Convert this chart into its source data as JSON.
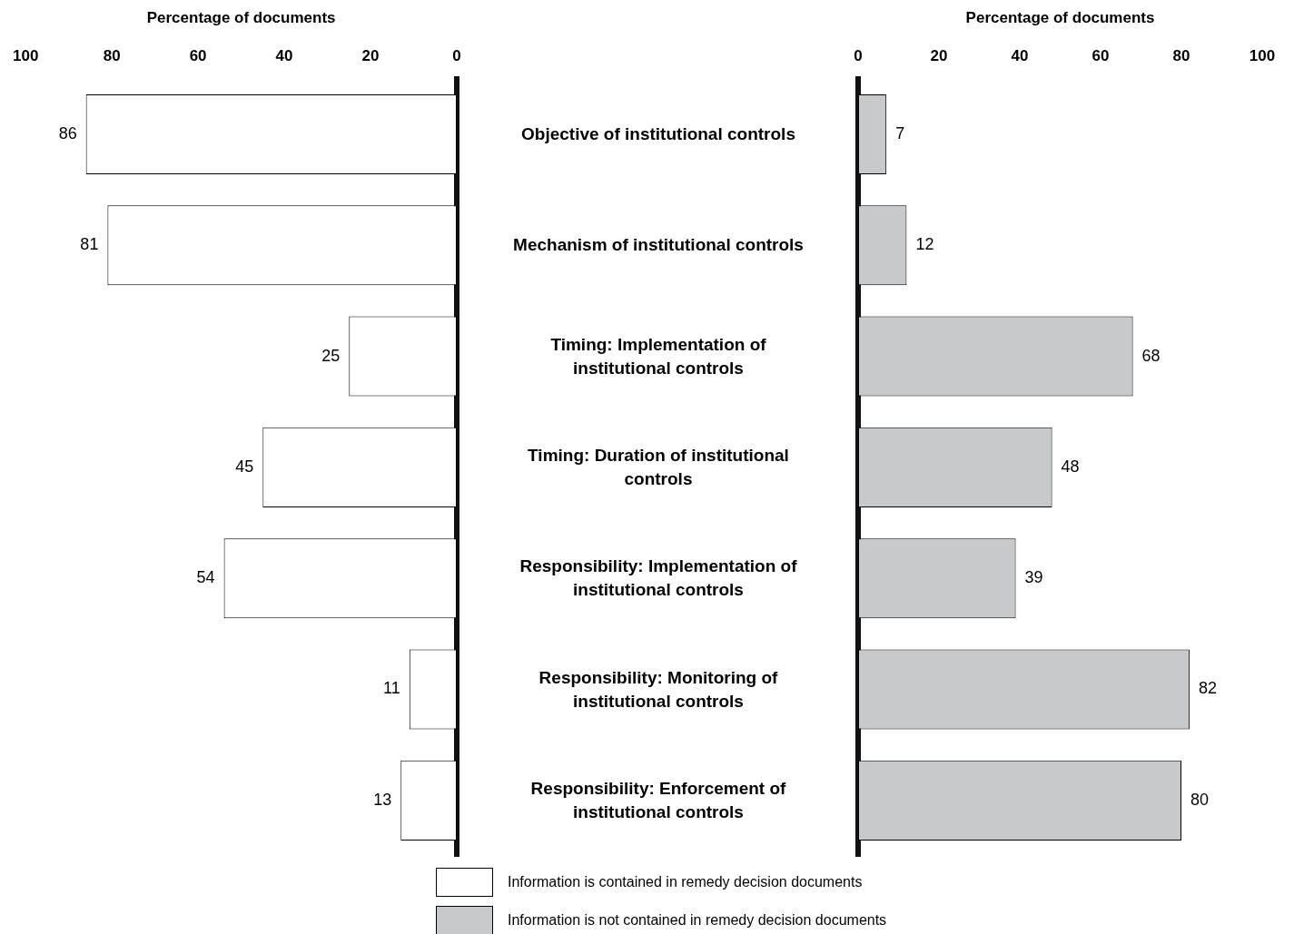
{
  "chart_data": [
    {
      "type": "bar",
      "orientation": "horizontal",
      "xlabel": "Percentage of documents",
      "categories": [
        "Objective of institutional controls",
        "Mechanism of institutional controls",
        "Timing: Implementation of institutional controls",
        "Timing: Duration of institutional controls",
        "Responsibility: Implementation of institutional controls",
        "Responsibility: Monitoring of institutional controls",
        "Responsibility: Enforcement of institutional controls"
      ],
      "series": [
        {
          "name": "Information is contained in remedy decision documents",
          "color": "#ffffff",
          "values": [
            86,
            81,
            25,
            45,
            54,
            11,
            13
          ]
        }
      ],
      "xlim": [
        100,
        0
      ],
      "xticks": [
        100,
        80,
        60,
        40,
        20,
        0
      ],
      "data_labels": true,
      "grid": false,
      "legend": "bottom"
    },
    {
      "type": "bar",
      "orientation": "horizontal",
      "xlabel": "Percentage of documents",
      "categories": [
        null,
        null,
        null,
        null,
        null,
        null,
        null
      ],
      "series": [
        {
          "name": "Information is not contained in remedy decision documents",
          "color": "#c8c9ca",
          "values": [
            7,
            12,
            68,
            48,
            39,
            82,
            80
          ]
        }
      ],
      "xlim": [
        0,
        100
      ],
      "xticks": [
        0,
        20,
        40,
        60,
        80,
        100
      ],
      "data_labels": true,
      "grid": false,
      "legend": "bottom",
      "tick_labels": "x"
    }
  ]
}
